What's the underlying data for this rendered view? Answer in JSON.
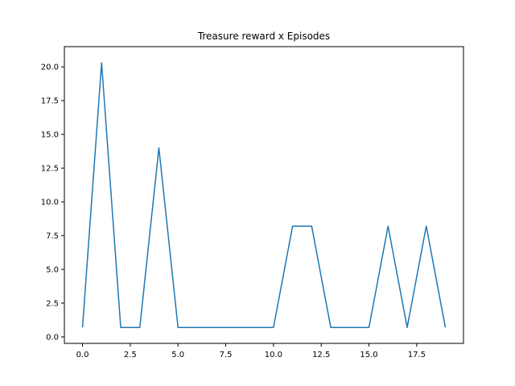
{
  "chart_data": {
    "type": "line",
    "title": "Treasure reward x Episodes",
    "xlabel": "",
    "ylabel": "",
    "xlim": [
      -0.95,
      19.95
    ],
    "ylim": [
      -0.48,
      21.5
    ],
    "x_ticks": [
      0.0,
      2.5,
      5.0,
      7.5,
      10.0,
      12.5,
      15.0,
      17.5
    ],
    "x_tick_labels": [
      "0.0",
      "2.5",
      "5.0",
      "7.5",
      "10.0",
      "12.5",
      "15.0",
      "17.5"
    ],
    "y_ticks": [
      0.0,
      2.5,
      5.0,
      7.5,
      10.0,
      12.5,
      15.0,
      17.5,
      20.0
    ],
    "y_tick_labels": [
      "0.0",
      "2.5",
      "5.0",
      "7.5",
      "10.0",
      "12.5",
      "15.0",
      "17.5",
      "20.0"
    ],
    "grid": false,
    "series": [
      {
        "color": "#1f77b4",
        "x": [
          0,
          1,
          2,
          3,
          4,
          5,
          6,
          7,
          8,
          9,
          10,
          11,
          12,
          13,
          14,
          15,
          16,
          17,
          18,
          19
        ],
        "y": [
          0.7,
          20.3,
          0.7,
          0.7,
          14.0,
          0.7,
          0.7,
          0.7,
          0.7,
          0.7,
          0.7,
          8.2,
          8.2,
          0.7,
          0.7,
          0.7,
          8.2,
          0.7,
          8.2,
          0.7
        ]
      }
    ]
  }
}
